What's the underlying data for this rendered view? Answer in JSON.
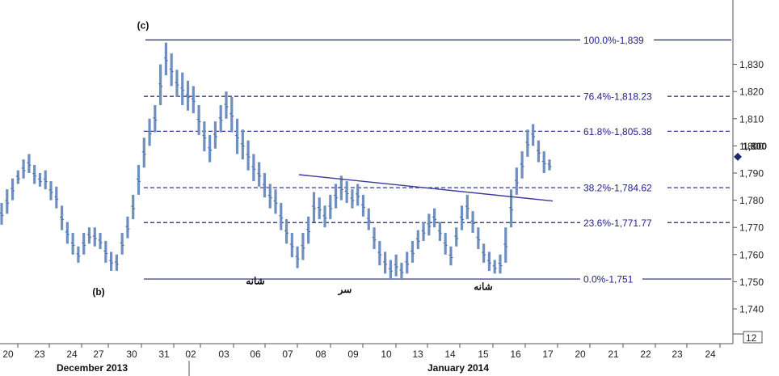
{
  "chart_data": {
    "type": "line",
    "subtype": "ohlc-bars",
    "ylim": [
      1734,
      1846
    ],
    "grid": false,
    "colors": {
      "bars": "#6f8fc0",
      "fib": "#22218a",
      "trendline": "#3a3a9a",
      "axis": "#555555",
      "marker": "#1a2a6c"
    },
    "x_ticks": [
      "20",
      "23",
      "24",
      "27",
      "30",
      "31",
      "02",
      "03",
      "06",
      "07",
      "08",
      "09",
      "10",
      "13",
      "14",
      "15",
      "16",
      "17",
      "20",
      "21",
      "22",
      "23",
      "24"
    ],
    "months": [
      "December 2013",
      "January 2014"
    ],
    "y_ticks": [
      {
        "value": 1740,
        "label": "1,740"
      },
      {
        "value": 1750,
        "label": "1,750"
      },
      {
        "value": 1760,
        "label": "1,760"
      },
      {
        "value": 1770,
        "label": "1,770"
      },
      {
        "value": 1780,
        "label": "1,780"
      },
      {
        "value": 1790,
        "label": "1,790"
      },
      {
        "value": 1800,
        "label": "1,800"
      },
      {
        "value": 1810,
        "label": "1,810"
      },
      {
        "value": 1820,
        "label": "1,820"
      },
      {
        "value": 1830,
        "label": "1,830"
      }
    ],
    "current_price": {
      "value": 1796,
      "label": "1,800"
    },
    "fib_levels": [
      {
        "value": 1839,
        "label": "100.0%-1,839",
        "style": "solid"
      },
      {
        "value": 1818.23,
        "label": "76.4%-1,818.23",
        "style": "dashed"
      },
      {
        "value": 1805.38,
        "label": "61.8%-1,805.38",
        "style": "dashed"
      },
      {
        "value": 1784.62,
        "label": "38.2%-1,784.62",
        "style": "dashed"
      },
      {
        "value": 1771.77,
        "label": "23.6%-1,771.77",
        "style": "dashed"
      },
      {
        "value": 1751,
        "label": "0.0%-1,751",
        "style": "solid"
      }
    ],
    "trendline": {
      "from": {
        "x": "07",
        "y": 1790
      },
      "to": {
        "x": "17",
        "y": 1780
      }
    },
    "annotations": [
      {
        "text": "(c)",
        "x": "30",
        "y": 1842
      },
      {
        "text": "(b)",
        "x": "27",
        "y": 1748
      },
      {
        "text": "شانه",
        "x": "06",
        "y": 1752
      },
      {
        "text": "سر",
        "x": "09",
        "y": 1749
      },
      {
        "text": "شانه",
        "x": "15",
        "y": 1750
      }
    ],
    "timeframe_label": "12",
    "series": [
      {
        "values": [
          [
            1779,
            1771
          ],
          [
            1784,
            1775
          ],
          [
            1788,
            1780
          ],
          [
            1791,
            1786
          ],
          [
            1795,
            1788
          ],
          [
            1797,
            1790
          ],
          [
            1793,
            1786
          ],
          [
            1790,
            1785
          ],
          [
            1791,
            1784
          ],
          [
            1787,
            1780
          ],
          [
            1785,
            1777
          ],
          [
            1778,
            1769
          ],
          [
            1772,
            1764
          ],
          [
            1768,
            1760
          ],
          [
            1763,
            1757
          ],
          [
            1768,
            1760
          ],
          [
            1770,
            1764
          ],
          [
            1770,
            1763
          ],
          [
            1768,
            1762
          ],
          [
            1765,
            1757
          ],
          [
            1761,
            1754
          ],
          [
            1760,
            1754
          ],
          [
            1768,
            1760
          ],
          [
            1774,
            1766
          ],
          [
            1782,
            1773
          ],
          [
            1793,
            1782
          ],
          [
            1803,
            1792
          ],
          [
            1810,
            1800
          ],
          [
            1815,
            1805
          ],
          [
            1830,
            1815
          ],
          [
            1838,
            1826
          ],
          [
            1834,
            1822
          ],
          [
            1828,
            1818
          ],
          [
            1827,
            1815
          ],
          [
            1824,
            1813
          ],
          [
            1822,
            1812
          ],
          [
            1815,
            1804
          ],
          [
            1809,
            1798
          ],
          [
            1804,
            1794
          ],
          [
            1809,
            1799
          ],
          [
            1815,
            1805
          ],
          [
            1820,
            1810
          ],
          [
            1818,
            1805
          ],
          [
            1810,
            1797
          ],
          [
            1806,
            1795
          ],
          [
            1802,
            1791
          ],
          [
            1797,
            1787
          ],
          [
            1794,
            1785
          ],
          [
            1790,
            1781
          ],
          [
            1786,
            1777
          ],
          [
            1784,
            1775
          ],
          [
            1779,
            1769
          ],
          [
            1773,
            1764
          ],
          [
            1768,
            1759
          ],
          [
            1763,
            1755
          ],
          [
            1768,
            1758
          ],
          [
            1774,
            1764
          ],
          [
            1783,
            1772
          ],
          [
            1781,
            1773
          ],
          [
            1778,
            1770
          ],
          [
            1782,
            1773
          ],
          [
            1786,
            1777
          ],
          [
            1789,
            1780
          ],
          [
            1787,
            1779
          ],
          [
            1784,
            1777
          ],
          [
            1786,
            1778
          ],
          [
            1782,
            1774
          ],
          [
            1777,
            1769
          ],
          [
            1770,
            1762
          ],
          [
            1765,
            1756
          ],
          [
            1761,
            1753
          ],
          [
            1758,
            1751
          ],
          [
            1760,
            1752
          ],
          [
            1757,
            1751
          ],
          [
            1761,
            1753
          ],
          [
            1765,
            1757
          ],
          [
            1769,
            1762
          ],
          [
            1772,
            1765
          ],
          [
            1775,
            1767
          ],
          [
            1777,
            1770
          ],
          [
            1772,
            1765
          ],
          [
            1768,
            1760
          ],
          [
            1763,
            1756
          ],
          [
            1770,
            1763
          ],
          [
            1778,
            1769
          ],
          [
            1782,
            1773
          ],
          [
            1776,
            1768
          ],
          [
            1770,
            1762
          ],
          [
            1764,
            1757
          ],
          [
            1761,
            1754
          ],
          [
            1758,
            1753
          ],
          [
            1760,
            1753
          ],
          [
            1770,
            1757
          ],
          [
            1784,
            1770
          ],
          [
            1792,
            1782
          ],
          [
            1798,
            1788
          ],
          [
            1806,
            1796
          ],
          [
            1808,
            1800
          ],
          [
            1802,
            1794
          ],
          [
            1798,
            1790
          ],
          [
            1795,
            1791
          ]
        ]
      }
    ]
  }
}
